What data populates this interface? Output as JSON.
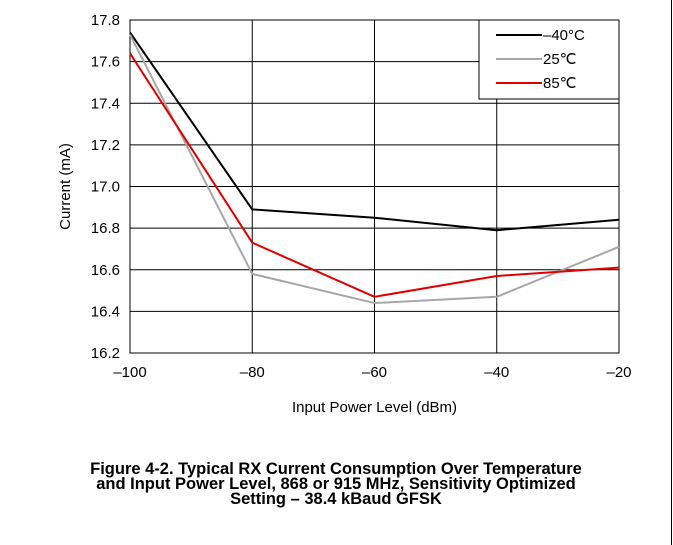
{
  "chart_data": {
    "type": "line",
    "xlabel": "Input Power Level (dBm)",
    "ylabel": "Current (mA)",
    "xlim": [
      -100,
      -20
    ],
    "ylim": [
      16.2,
      17.8
    ],
    "xticks": [
      -100,
      -80,
      -60,
      -40,
      -20
    ],
    "xtick_labels": [
      "–100",
      "–80",
      "–60",
      "–40",
      "–20"
    ],
    "yticks": [
      16.2,
      16.4,
      16.6,
      16.8,
      17.0,
      17.2,
      17.4,
      17.6,
      17.8
    ],
    "ytick_labels": [
      "16.2",
      "16.4",
      "16.6",
      "16.8",
      "17.0",
      "17.2",
      "17.4",
      "17.6",
      "17.8"
    ],
    "grid": true,
    "legend_position": "top-right",
    "x": [
      -100,
      -80,
      -60,
      -40,
      -20
    ],
    "series": [
      {
        "name": "–40°C",
        "color": "#000000",
        "values": [
          17.74,
          16.89,
          16.85,
          16.79,
          16.84
        ]
      },
      {
        "name": "25℃",
        "color": "#a6a6a6",
        "values": [
          17.73,
          16.58,
          16.44,
          16.47,
          16.71
        ]
      },
      {
        "name": "85℃",
        "color": "#e00000",
        "values": [
          17.64,
          16.73,
          16.47,
          16.57,
          16.61
        ]
      }
    ]
  },
  "caption": {
    "line1": "Figure 4-2. Typical RX Current Consumption Over Temperature",
    "line2": "and Input Power Level, 868 or 915 MHz, Sensitivity Optimized",
    "line3": "Setting – 38.4 kBaud GFSK"
  }
}
